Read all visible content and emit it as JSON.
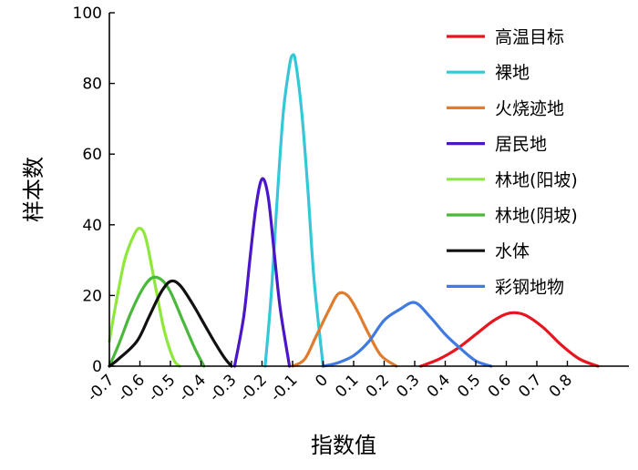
{
  "chart_data": {
    "type": "line",
    "title": "",
    "xlabel": "指数值",
    "ylabel": "样本数",
    "xlim": [
      -0.7,
      1.0
    ],
    "ylim": [
      0,
      100
    ],
    "x_ticks": [
      "-0.7",
      "-0.6",
      "-0.5",
      "-0.4",
      "-0.3",
      "-0.2",
      "-0.1",
      "0",
      "0.1",
      "0.2",
      "0.3",
      "0.4",
      "0.5",
      "0.6",
      "0.7",
      "0.8"
    ],
    "x_tick_values": [
      -0.7,
      -0.6,
      -0.5,
      -0.4,
      -0.3,
      -0.2,
      -0.1,
      0,
      0.1,
      0.2,
      0.3,
      0.4,
      0.5,
      0.6,
      0.7,
      0.8
    ],
    "y_ticks": [
      "0",
      "20",
      "40",
      "60",
      "80",
      "100"
    ],
    "y_tick_values": [
      0,
      20,
      40,
      60,
      80,
      100
    ],
    "grid": false,
    "legend_position": "top-right",
    "series": [
      {
        "name": "高温目标",
        "color": "#e8141e",
        "points": [
          [
            0.32,
            0
          ],
          [
            0.38,
            2
          ],
          [
            0.44,
            5
          ],
          [
            0.5,
            9
          ],
          [
            0.56,
            13
          ],
          [
            0.61,
            15
          ],
          [
            0.66,
            14.5
          ],
          [
            0.72,
            11
          ],
          [
            0.78,
            6
          ],
          [
            0.84,
            2
          ],
          [
            0.9,
            0
          ]
        ]
      },
      {
        "name": "裸地",
        "color": "#34c7d8",
        "points": [
          [
            -0.19,
            0
          ],
          [
            -0.17,
            20
          ],
          [
            -0.15,
            48
          ],
          [
            -0.13,
            72
          ],
          [
            -0.11,
            85
          ],
          [
            -0.1,
            88
          ],
          [
            -0.09,
            86
          ],
          [
            -0.07,
            72
          ],
          [
            -0.05,
            50
          ],
          [
            -0.03,
            25
          ],
          [
            0.0,
            0
          ]
        ]
      },
      {
        "name": "火烧迹地",
        "color": "#e07c2e",
        "points": [
          [
            -0.1,
            0
          ],
          [
            -0.06,
            2
          ],
          [
            -0.02,
            9
          ],
          [
            0.02,
            16
          ],
          [
            0.05,
            20.5
          ],
          [
            0.08,
            20
          ],
          [
            0.11,
            16
          ],
          [
            0.15,
            9
          ],
          [
            0.19,
            3
          ],
          [
            0.24,
            0
          ]
        ]
      },
      {
        "name": "居民地",
        "color": "#4a16c6",
        "points": [
          [
            -0.29,
            0
          ],
          [
            -0.26,
            14
          ],
          [
            -0.24,
            30
          ],
          [
            -0.22,
            45
          ],
          [
            -0.2,
            53
          ],
          [
            -0.18,
            48
          ],
          [
            -0.16,
            32
          ],
          [
            -0.14,
            16
          ],
          [
            -0.11,
            0
          ]
        ]
      },
      {
        "name": "林地(阳坡)",
        "color": "#8ee83a",
        "points": [
          [
            -0.7,
            7
          ],
          [
            -0.68,
            17
          ],
          [
            -0.65,
            30
          ],
          [
            -0.62,
            37
          ],
          [
            -0.6,
            39
          ],
          [
            -0.58,
            36
          ],
          [
            -0.55,
            23
          ],
          [
            -0.52,
            10
          ],
          [
            -0.49,
            2
          ],
          [
            -0.47,
            0
          ]
        ]
      },
      {
        "name": "林地(阴坡)",
        "color": "#4ab83a",
        "points": [
          [
            -0.7,
            0
          ],
          [
            -0.67,
            6
          ],
          [
            -0.63,
            15
          ],
          [
            -0.59,
            22
          ],
          [
            -0.56,
            25
          ],
          [
            -0.53,
            24.5
          ],
          [
            -0.5,
            21
          ],
          [
            -0.46,
            13
          ],
          [
            -0.42,
            5
          ],
          [
            -0.39,
            0
          ]
        ]
      },
      {
        "name": "水体",
        "color": "#111111",
        "points": [
          [
            -0.7,
            0
          ],
          [
            -0.67,
            2
          ],
          [
            -0.61,
            7
          ],
          [
            -0.57,
            14
          ],
          [
            -0.53,
            21
          ],
          [
            -0.5,
            24
          ],
          [
            -0.47,
            23
          ],
          [
            -0.43,
            18
          ],
          [
            -0.39,
            12
          ],
          [
            -0.35,
            6
          ],
          [
            -0.32,
            2
          ],
          [
            -0.3,
            0
          ]
        ]
      },
      {
        "name": "彩钢地物",
        "color": "#3f7be0",
        "points": [
          [
            0.0,
            0
          ],
          [
            0.05,
            1
          ],
          [
            0.1,
            3
          ],
          [
            0.15,
            7
          ],
          [
            0.2,
            13
          ],
          [
            0.25,
            16
          ],
          [
            0.3,
            18
          ],
          [
            0.35,
            14
          ],
          [
            0.4,
            9
          ],
          [
            0.45,
            5
          ],
          [
            0.5,
            1.5
          ],
          [
            0.55,
            0
          ]
        ]
      }
    ]
  }
}
